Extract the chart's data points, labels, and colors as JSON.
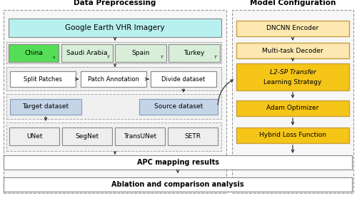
{
  "title_left": "Data Preprocessing",
  "title_right": "Model Configuration",
  "google_earth_box": {
    "text": "Google Earth VHR Imagery",
    "color": "#b8f0f0",
    "edgecolor": "#888888"
  },
  "country_boxes": [
    {
      "text": "China",
      "sub": "s",
      "color": "#55dd55",
      "edgecolor": "#888888"
    },
    {
      "text": "Saudi Arabia",
      "sub": "T",
      "color": "#d8eed8",
      "edgecolor": "#888888"
    },
    {
      "text": "Spain",
      "sub": "T",
      "color": "#d8eed8",
      "edgecolor": "#888888"
    },
    {
      "text": "Turkey",
      "sub": "T",
      "color": "#d8eed8",
      "edgecolor": "#888888"
    }
  ],
  "pipeline_boxes": [
    {
      "text": "Split Patches"
    },
    {
      "text": "Patch Annotation"
    },
    {
      "text": "Divide dataset"
    }
  ],
  "dataset_boxes": [
    {
      "text": "Target dataset",
      "color": "#c5d5e8"
    },
    {
      "text": "Source dataset",
      "color": "#c5d5e8"
    }
  ],
  "model_boxes": [
    {
      "text": "UNet"
    },
    {
      "text": "SegNet"
    },
    {
      "text": "TransUNet"
    },
    {
      "text": "SETR"
    }
  ],
  "result_boxes": [
    {
      "text": "APC mapping results",
      "bold": true
    },
    {
      "text": "Ablation and comparison analysis",
      "bold": true
    }
  ],
  "right_boxes": [
    {
      "text": "DNCNN Encoder",
      "color": "#fce8b0",
      "edgecolor": "#c8a040"
    },
    {
      "text": "Multi-task Decoder",
      "color": "#fce8b0",
      "edgecolor": "#c8a040"
    },
    {
      "text": "L2-SP Transfer\nLearning Strategy",
      "color": "#f5c518",
      "edgecolor": "#c8a040",
      "italic_first": true
    },
    {
      "text": "Adam Optimizer",
      "color": "#f5c518",
      "edgecolor": "#c8a040"
    },
    {
      "text": "Hybrid Loss Function",
      "color": "#f5c518",
      "edgecolor": "#c8a040"
    }
  ],
  "arrow_color": "#333333",
  "fig_w": 5.0,
  "fig_h": 2.85,
  "dpi": 100
}
